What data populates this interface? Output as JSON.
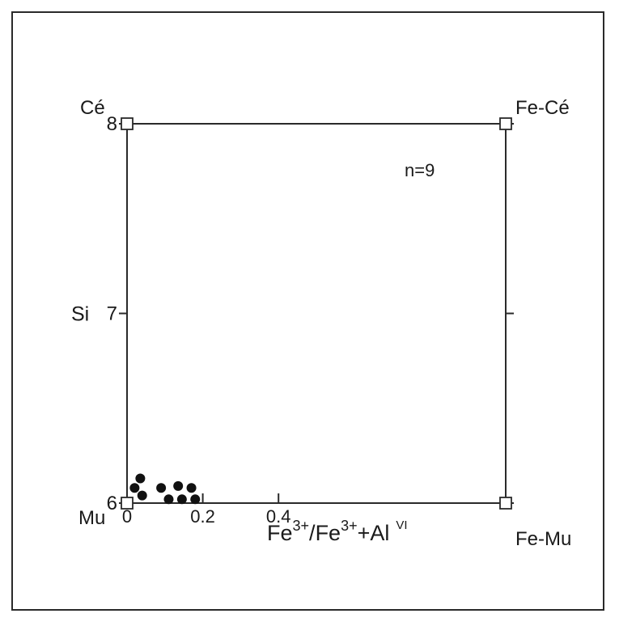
{
  "chart_data": {
    "type": "scatter",
    "xlim": [
      0,
      1
    ],
    "ylim": [
      6,
      8
    ],
    "x_ticks": [
      {
        "value": 0,
        "label": "0"
      },
      {
        "value": 0.2,
        "label": "0.2"
      },
      {
        "value": 0.4,
        "label": "0.4"
      }
    ],
    "y_ticks": [
      {
        "value": 6,
        "label": "6"
      },
      {
        "value": 7,
        "label": "7"
      },
      {
        "value": 8,
        "label": "8"
      }
    ],
    "ylabel": "Si",
    "xlabel_parts": {
      "a": "Fe",
      "a_sup": "3+",
      "slash": "/",
      "b": "Fe",
      "b_sup": "3+",
      "plus": "+",
      "c": "Al",
      "c_sup": "VI"
    },
    "annotation": "n=9",
    "corners": {
      "top_left": {
        "label": "Cé",
        "x": 0,
        "y": 8
      },
      "top_right": {
        "label": "Fe-Cé",
        "x": 1,
        "y": 8
      },
      "bottom_left": {
        "label": "Mu",
        "x": 0,
        "y": 6
      },
      "bottom_right": {
        "label": "Fe-Mu",
        "x": 1,
        "y": 6
      }
    },
    "points": [
      {
        "x": 0.02,
        "y": 6.08
      },
      {
        "x": 0.035,
        "y": 6.13
      },
      {
        "x": 0.04,
        "y": 6.04
      },
      {
        "x": 0.09,
        "y": 6.08
      },
      {
        "x": 0.11,
        "y": 6.02
      },
      {
        "x": 0.135,
        "y": 6.09
      },
      {
        "x": 0.145,
        "y": 6.02
      },
      {
        "x": 0.17,
        "y": 6.08
      },
      {
        "x": 0.18,
        "y": 6.02
      }
    ],
    "grid": false,
    "legend": "none"
  }
}
